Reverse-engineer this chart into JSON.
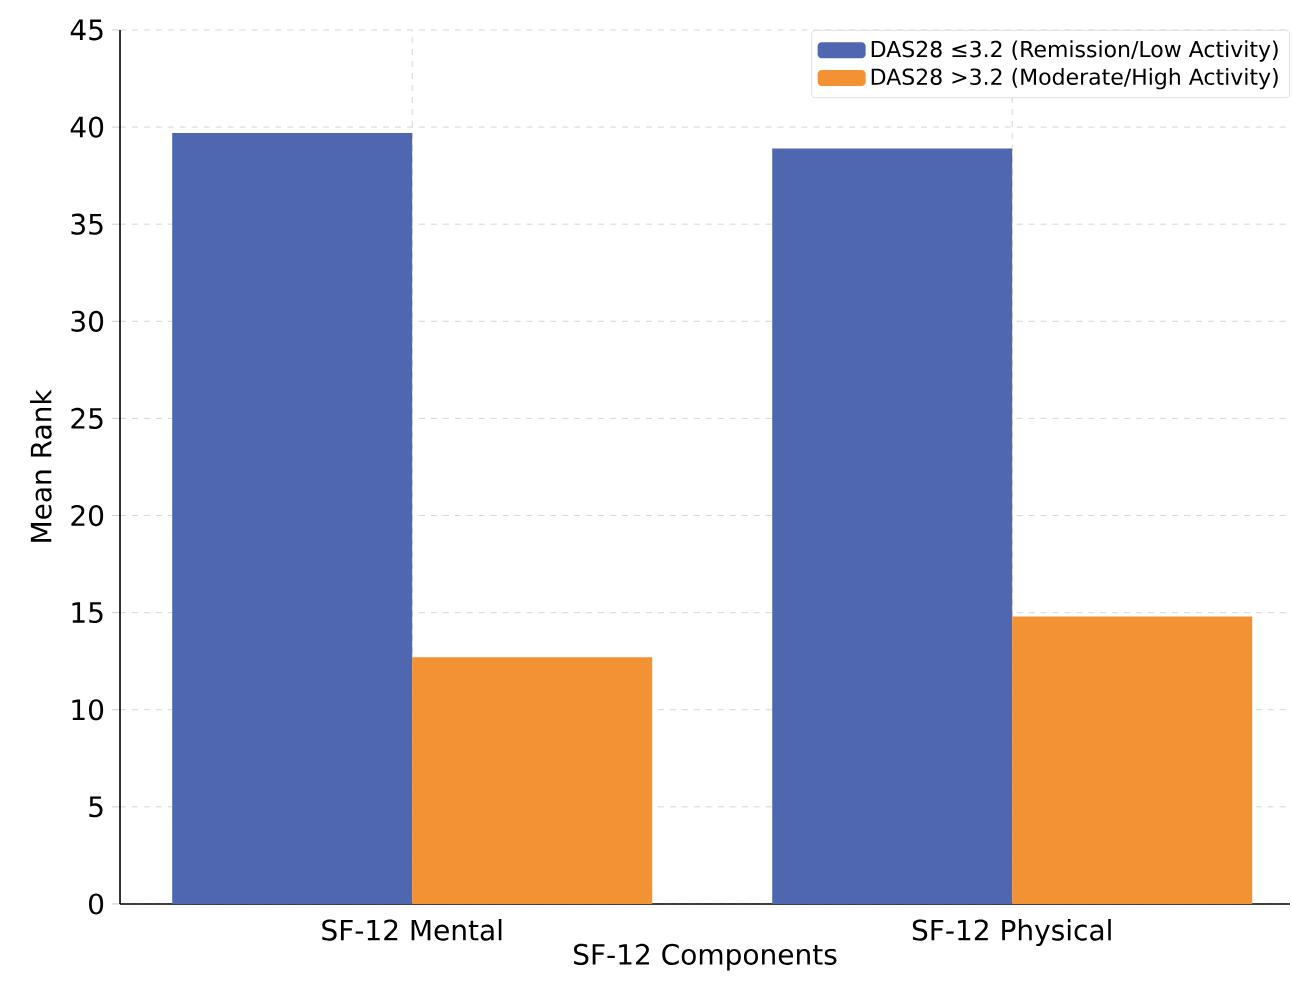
{
  "chart_data": {
    "type": "bar",
    "xlabel": "SF-12 Components",
    "ylabel": "Mean Rank",
    "categories": [
      "SF-12 Mental",
      "SF-12 Physical"
    ],
    "series": [
      {
        "name": "DAS28 ≤3.2 (Remission/Low Activity)",
        "color": "#4f67b0",
        "values": [
          39.7,
          38.9
        ]
      },
      {
        "name": "DAS28 >3.2 (Moderate/High Activity)",
        "color": "#f39135",
        "values": [
          12.7,
          14.8
        ]
      }
    ],
    "ylim": [
      0,
      45
    ],
    "yticks": [
      0,
      5,
      10,
      15,
      20,
      25,
      30,
      35,
      40,
      45
    ],
    "grid": true,
    "legend": "top right"
  }
}
